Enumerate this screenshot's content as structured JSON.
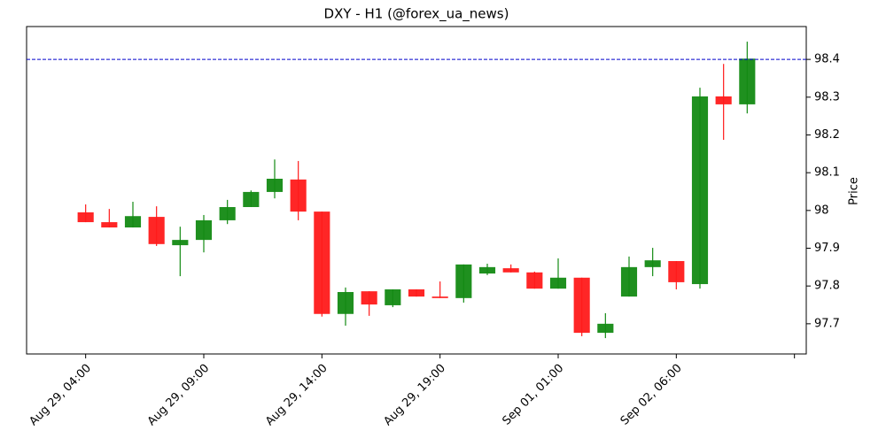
{
  "chart_data": {
    "type": "candlestick",
    "title": "DXY - H1 (@forex_ua_news)",
    "y_label": "Price",
    "x": [
      0,
      1,
      2,
      3,
      4,
      5,
      6,
      7,
      8,
      9,
      10,
      11,
      12,
      13,
      14,
      15,
      16,
      17,
      18,
      19,
      20,
      21,
      22,
      23,
      24,
      25,
      26,
      27,
      28
    ],
    "open": [
      97.995,
      97.969,
      97.955,
      97.983,
      97.908,
      97.922,
      97.974,
      98.009,
      98.049,
      98.082,
      97.997,
      97.726,
      97.786,
      97.749,
      97.791,
      97.772,
      97.768,
      97.833,
      97.847,
      97.836,
      97.793,
      97.822,
      97.676,
      97.772,
      97.85,
      97.866,
      97.805,
      98.302,
      98.281
    ],
    "high": [
      98.016,
      98.004,
      98.023,
      98.011,
      97.957,
      97.988,
      98.028,
      98.053,
      98.135,
      98.131,
      97.997,
      97.796,
      97.786,
      97.791,
      97.791,
      97.812,
      97.857,
      97.859,
      97.857,
      97.838,
      97.873,
      97.822,
      97.728,
      97.878,
      97.901,
      97.866,
      98.325,
      98.388,
      98.447
    ],
    "low": [
      97.969,
      97.955,
      97.955,
      97.906,
      97.826,
      97.889,
      97.964,
      98.009,
      98.032,
      97.974,
      97.719,
      97.695,
      97.721,
      97.744,
      97.772,
      97.768,
      97.756,
      97.829,
      97.836,
      97.793,
      97.793,
      97.667,
      97.662,
      97.772,
      97.826,
      97.791,
      97.793,
      98.187,
      98.257
    ],
    "close": [
      97.969,
      97.955,
      97.985,
      97.911,
      97.922,
      97.974,
      98.009,
      98.049,
      98.084,
      97.997,
      97.726,
      97.784,
      97.751,
      97.791,
      97.772,
      97.768,
      97.857,
      97.85,
      97.836,
      97.793,
      97.822,
      97.676,
      97.7,
      97.85,
      97.868,
      97.81,
      98.302,
      98.281,
      98.402
    ],
    "up_color": "#138a13",
    "down_color": "#ff1a1a",
    "xlim": [
      -2.5,
      30.5
    ],
    "ylim": [
      97.62,
      98.487
    ],
    "xticks": [
      {
        "value": 0,
        "label": "Aug 29, 04:00"
      },
      {
        "value": 5,
        "label": "Aug 29, 09:00"
      },
      {
        "value": 10,
        "label": "Aug 29, 14:00"
      },
      {
        "value": 15,
        "label": "Aug 29, 19:00"
      },
      {
        "value": 20,
        "label": "Sep 01, 01:00"
      },
      {
        "value": 25,
        "label": "Sep 02, 06:00"
      },
      {
        "value": 30,
        "label": null
      }
    ],
    "yticks": [
      97.7,
      97.8,
      97.9,
      98.0,
      98.1,
      98.2,
      98.3,
      98.4
    ],
    "hline": {
      "value": 98.4,
      "color": "#0000cc"
    }
  }
}
